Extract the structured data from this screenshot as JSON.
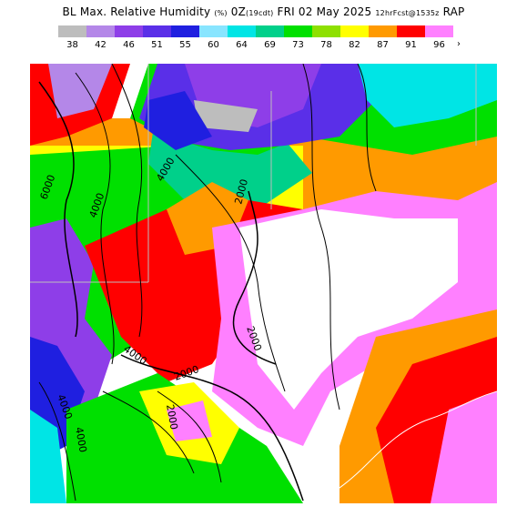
{
  "header": {
    "title_main": "BL Max. Relative Humidity",
    "title_unit": "(%)",
    "title_time": "0Z",
    "title_local": "(19cdt)",
    "title_date": "FRI 02 May 2025",
    "title_run": "12hrFcst@1535z",
    "title_model": "RAP"
  },
  "legend": {
    "labels": [
      "38",
      "42",
      "46",
      "51",
      "55",
      "60",
      "64",
      "69",
      "73",
      "78",
      "82",
      "87",
      "91",
      "96"
    ],
    "colors": [
      "#bdbdbd",
      "#b487e8",
      "#8e3ee8",
      "#5a2fe8",
      "#1f1fe0",
      "#88e5ff",
      "#00e5e5",
      "#00d08a",
      "#00e000",
      "#8ee000",
      "#ffff00",
      "#ff9a00",
      "#ff0000",
      "#ff80ff"
    ],
    "overflow_arrow": "›"
  },
  "map": {
    "background_color": "#ffffff",
    "contour_labels": [
      "6000",
      "4000",
      "4000",
      "2000",
      "2000",
      "4000",
      "2000",
      "4000",
      "2000",
      "4000"
    ]
  }
}
